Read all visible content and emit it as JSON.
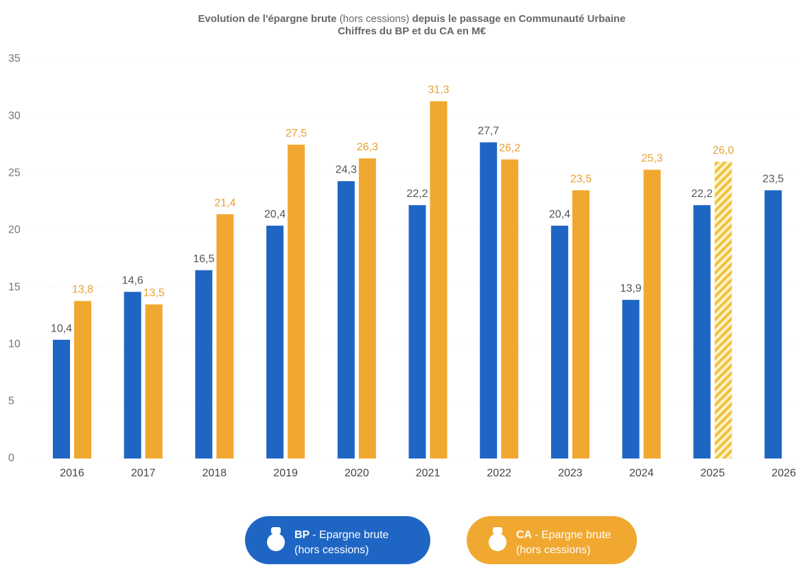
{
  "chart_data": {
    "type": "bar",
    "title": [
      "Evolution de l'épargne brute",
      "(hors cessions)",
      "depuis le passage en Communauté Urbaine"
    ],
    "subtitle": "Chiffres du BP et du CA en M€",
    "categories": [
      "2016",
      "2017",
      "2018",
      "2019",
      "2020",
      "2021",
      "2022",
      "2023",
      "2024",
      "2025",
      "2026"
    ],
    "series": [
      {
        "name": "BP",
        "legend_text": "- Epargne brute",
        "legend_subtext": "(hors cessions)",
        "color": "#1f66c4",
        "label_color": "#555555",
        "values": [
          10.4,
          14.6,
          16.5,
          20.4,
          24.3,
          22.2,
          27.7,
          20.4,
          13.9,
          22.2,
          23.5
        ],
        "value_labels": [
          "10,4",
          "14,6",
          "16,5",
          "20,4",
          "24,3",
          "22,2",
          "27,7",
          "20,4",
          "13,9",
          "22,2",
          "23,5"
        ]
      },
      {
        "name": "CA",
        "legend_text": "- Epargne brute",
        "legend_subtext": "(hors cessions)",
        "color": "#f0a830",
        "label_color": "#e8a030",
        "values": [
          13.8,
          13.5,
          21.4,
          27.5,
          26.3,
          31.3,
          26.2,
          23.5,
          25.3,
          26.0,
          null
        ],
        "value_labels": [
          "13,8",
          "13,5",
          "21,4",
          "27,5",
          "26,3",
          "31,3",
          "26,2",
          "23,5",
          "25,3",
          "26,0",
          null
        ],
        "hatched": [
          "2025"
        ]
      }
    ],
    "ylim": [
      0,
      35
    ],
    "yticks": [
      0,
      5,
      10,
      15,
      20,
      25,
      30,
      35
    ],
    "grid": true
  }
}
